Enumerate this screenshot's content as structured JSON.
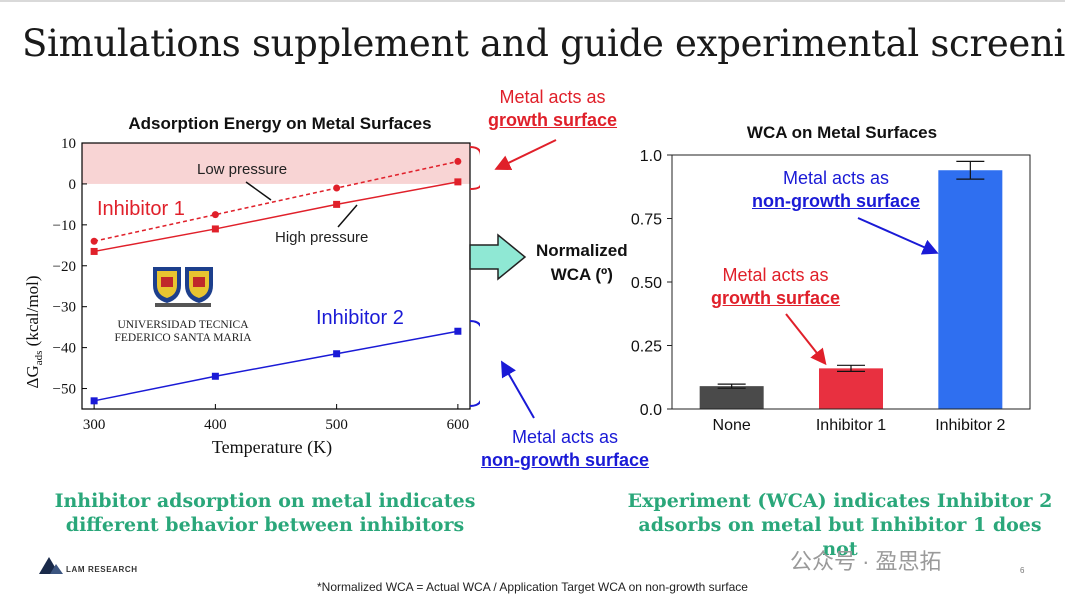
{
  "slide": {
    "title": "Simulations supplement and guide experimental screening",
    "left_summary": [
      "Inhibitor adsorption on metal indicates",
      "different behavior between inhibitors"
    ],
    "right_summary": [
      "Experiment (WCA) indicates Inhibitor 2",
      "adsorbs on metal but Inhibitor 1 does not"
    ],
    "footnote": "*Normalized WCA = Actual WCA / Application Target WCA on non-growth surface",
    "company": "LAM RESEARCH",
    "watermark": "公众号 · 盈思拓",
    "page_number": "6",
    "arrow_label": [
      "Normalized",
      "WCA (º)"
    ],
    "colors": {
      "green": "#2aa77a",
      "red": "#e0202a",
      "blue": "#1a1ad6",
      "band": "#f8d4d4"
    }
  },
  "callouts": {
    "top_red": {
      "line1": "Metal acts as",
      "line2": "growth surface"
    },
    "mid_red": {
      "line1": "Metal acts as",
      "line2": "growth surface"
    },
    "top_blue": {
      "line1": "Metal acts as",
      "line2": "non-growth surface"
    },
    "bottom_blue": {
      "line1": "Metal acts as",
      "line2": "non-growth surface"
    }
  },
  "university": {
    "line1": "UNIVERSIDAD TECNICA",
    "line2": "FEDERICO SANTA MARIA"
  },
  "chart_data": [
    {
      "type": "line",
      "title": "Adsorption Energy on Metal Surfaces",
      "xlabel": "Temperature (K)",
      "ylabel": "ΔG",
      "ylabel_sub": "ads",
      "ylabel_unit": " (kcal/mol)",
      "x": [
        300,
        400,
        500,
        600
      ],
      "xlim": [
        290,
        610
      ],
      "ylim": [
        -55,
        10
      ],
      "xticks": [
        300,
        400,
        500,
        600
      ],
      "yticks": [
        10,
        0,
        -10,
        -20,
        -30,
        -40,
        -50
      ],
      "series": [
        {
          "name": "Inhibitor 1 low pressure",
          "values": [
            -14,
            -7.5,
            -1,
            5.5
          ],
          "color": "#e0202a",
          "dashed": true,
          "marker": "circle"
        },
        {
          "name": "Inhibitor 1 high pressure",
          "values": [
            -16.5,
            -11,
            -5,
            0.5
          ],
          "color": "#e0202a",
          "dashed": false,
          "marker": "square"
        },
        {
          "name": "Inhibitor 2",
          "values": [
            -53,
            -47,
            -41.5,
            -36
          ],
          "color": "#1a1ad6",
          "dashed": false,
          "marker": "square"
        }
      ],
      "annotations": {
        "low_pressure": "Low pressure",
        "high_pressure": "High pressure",
        "inhibitor1": "Inhibitor 1",
        "inhibitor2": "Inhibitor 2"
      },
      "shaded_band": [
        0,
        10
      ]
    },
    {
      "type": "bar",
      "title": "WCA on Metal Surfaces",
      "categories": [
        "None",
        "Inhibitor 1",
        "Inhibitor 2"
      ],
      "values": [
        0.09,
        0.16,
        0.94
      ],
      "errors": [
        0.008,
        0.012,
        0.035
      ],
      "colors": [
        "#4a4a4a",
        "#e83040",
        "#2f6ff0"
      ],
      "ylim": [
        0,
        1.0
      ],
      "yticks": [
        0.0,
        0.25,
        0.5,
        0.75,
        1.0
      ],
      "ytick_labels": [
        "0.0",
        "0.25",
        "0.50",
        "0.75",
        "1.0"
      ]
    }
  ]
}
